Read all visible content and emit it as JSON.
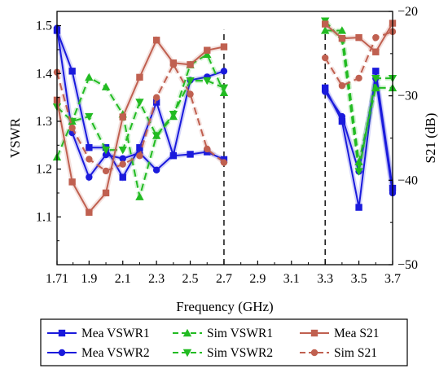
{
  "chart_data": {
    "type": "line",
    "xlabel": "Frequency (GHz)",
    "ylabel_left": "VSWR",
    "ylabel_right": "S21 (dB)",
    "xlim": [
      1.71,
      3.7
    ],
    "ylim_left": [
      1.0,
      1.53
    ],
    "ylim_right": [
      -50,
      -20
    ],
    "x_ticks": [
      "1.71",
      "1.9",
      "2.1",
      "2.3",
      "2.5",
      "2.7",
      "2.9",
      "3.1",
      "3.3",
      "3.5",
      "3.7"
    ],
    "x_tick_values": [
      1.71,
      1.9,
      2.1,
      2.3,
      2.5,
      2.7,
      2.9,
      3.1,
      3.3,
      3.5,
      3.7
    ],
    "y_ticks_left": [
      "1.1",
      "1.2",
      "1.3",
      "1.4",
      "1.5"
    ],
    "y_tick_values_left": [
      1.1,
      1.2,
      1.3,
      1.4,
      1.5
    ],
    "y_ticks_right": [
      "-20",
      "-30",
      "-40",
      "-50"
    ],
    "y_tick_values_right": [
      -20,
      -30,
      -40,
      -50
    ],
    "grid": false,
    "legend_position": "bottom",
    "markers": [
      2.7,
      3.3
    ],
    "series": [
      {
        "name": "Mea VSWR1",
        "axis": "left",
        "color": "#1a1adc",
        "dash": "solid",
        "marker": "square",
        "segments": [
          [
            [
              1.71,
              1.49
            ],
            [
              1.8,
              1.405
            ],
            [
              1.9,
              1.245
            ],
            [
              2.0,
              1.245
            ],
            [
              2.1,
              1.183
            ],
            [
              2.2,
              1.245
            ],
            [
              2.3,
              1.34
            ],
            [
              2.4,
              1.228
            ],
            [
              2.5,
              1.231
            ],
            [
              2.6,
              1.236
            ],
            [
              2.7,
              1.22
            ]
          ],
          [
            [
              3.3,
              1.37
            ],
            [
              3.4,
              1.3
            ],
            [
              3.5,
              1.12
            ],
            [
              3.6,
              1.405
            ],
            [
              3.7,
              1.16
            ]
          ]
        ]
      },
      {
        "name": "Mea VSWR2",
        "axis": "left",
        "color": "#1a1adc",
        "dash": "solid",
        "marker": "circle",
        "segments": [
          [
            [
              1.71,
              1.495
            ],
            [
              1.8,
              1.276
            ],
            [
              1.9,
              1.183
            ],
            [
              2.0,
              1.23
            ],
            [
              2.1,
              1.222
            ],
            [
              2.2,
              1.234
            ],
            [
              2.3,
              1.198
            ],
            [
              2.4,
              1.23
            ],
            [
              2.5,
              1.386
            ],
            [
              2.6,
              1.393
            ],
            [
              2.7,
              1.405
            ]
          ],
          [
            [
              3.3,
              1.362
            ],
            [
              3.4,
              1.31
            ],
            [
              3.5,
              1.195
            ],
            [
              3.6,
              1.39
            ],
            [
              3.7,
              1.15
            ]
          ]
        ]
      },
      {
        "name": "Sim VSWR1",
        "axis": "left",
        "color": "#22bb22",
        "dash": "dashed",
        "marker": "triangle-up",
        "segments": [
          [
            [
              1.71,
              1.225
            ],
            [
              1.8,
              1.3
            ],
            [
              1.9,
              1.392
            ],
            [
              2.0,
              1.372
            ],
            [
              2.1,
              1.315
            ],
            [
              2.2,
              1.142
            ],
            [
              2.3,
              1.27
            ],
            [
              2.4,
              1.31
            ],
            [
              2.5,
              1.418
            ],
            [
              2.6,
              1.44
            ],
            [
              2.7,
              1.36
            ]
          ],
          [
            [
              3.3,
              1.49
            ],
            [
              3.4,
              1.49
            ],
            [
              3.5,
              1.215
            ],
            [
              3.6,
              1.37
            ],
            [
              3.7,
              1.37
            ]
          ]
        ]
      },
      {
        "name": "Sim VSWR2",
        "axis": "left",
        "color": "#22bb22",
        "dash": "dashed",
        "marker": "triangle-down",
        "segments": [
          [
            [
              1.71,
              1.33
            ],
            [
              1.8,
              1.3
            ],
            [
              1.9,
              1.31
            ],
            [
              2.0,
              1.24
            ],
            [
              2.1,
              1.24
            ],
            [
              2.2,
              1.34
            ],
            [
              2.3,
              1.27
            ],
            [
              2.4,
              1.315
            ],
            [
              2.5,
              1.385
            ],
            [
              2.6,
              1.385
            ],
            [
              2.7,
              1.37
            ]
          ],
          [
            [
              3.3,
              1.51
            ],
            [
              3.4,
              1.47
            ],
            [
              3.5,
              1.195
            ],
            [
              3.6,
              1.39
            ],
            [
              3.7,
              1.39
            ]
          ]
        ]
      },
      {
        "name": "Mea S21",
        "axis": "right",
        "color": "#c06050",
        "dash": "solid",
        "marker": "square",
        "segments": [
          [
            [
              1.71,
              -30.5
            ],
            [
              1.8,
              -40.2
            ],
            [
              1.9,
              -43.8
            ],
            [
              2.0,
              -41.5
            ],
            [
              2.1,
              -32.5
            ],
            [
              2.2,
              -27.8
            ],
            [
              2.3,
              -23.4
            ],
            [
              2.4,
              -26.1
            ],
            [
              2.5,
              -26.3
            ],
            [
              2.6,
              -24.6
            ],
            [
              2.7,
              -24.2
            ]
          ],
          [
            [
              3.3,
              -21.5
            ],
            [
              3.4,
              -23.2
            ],
            [
              3.5,
              -23.1
            ],
            [
              3.6,
              -24.8
            ],
            [
              3.7,
              -21.4
            ]
          ]
        ]
      },
      {
        "name": "Sim S21",
        "axis": "right",
        "color": "#c06050",
        "dash": "dashed",
        "marker": "circle",
        "segments": [
          [
            [
              1.71,
              -27.2
            ],
            [
              1.8,
              -33.8
            ],
            [
              1.9,
              -37.5
            ],
            [
              2.0,
              -38.9
            ],
            [
              2.1,
              -38.1
            ],
            [
              2.2,
              -37.1
            ],
            [
              2.3,
              -30.2
            ],
            [
              2.4,
              -26.3
            ],
            [
              2.5,
              -29.8
            ],
            [
              2.6,
              -36.3
            ],
            [
              2.7,
              -37.9
            ]
          ],
          [
            [
              3.3,
              -25.5
            ],
            [
              3.4,
              -28.8
            ],
            [
              3.5,
              -27.9
            ],
            [
              3.6,
              -23.1
            ],
            [
              3.7,
              -22.4
            ]
          ]
        ]
      }
    ]
  }
}
